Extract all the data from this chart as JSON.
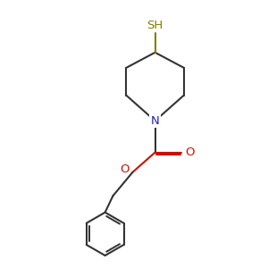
{
  "background_color": "#ffffff",
  "bond_color": "#333333",
  "nitrogen_color": "#2222bb",
  "oxygen_color": "#cc1100",
  "sulfur_color": "#808000",
  "line_width": 1.5,
  "font_size": 9.5,
  "sh_label": "SH",
  "n_label": "N",
  "o_label": "O",
  "figsize": [
    3.0,
    3.0
  ],
  "dpi": 100,
  "xlim": [
    0,
    10
  ],
  "ylim": [
    0,
    10
  ]
}
